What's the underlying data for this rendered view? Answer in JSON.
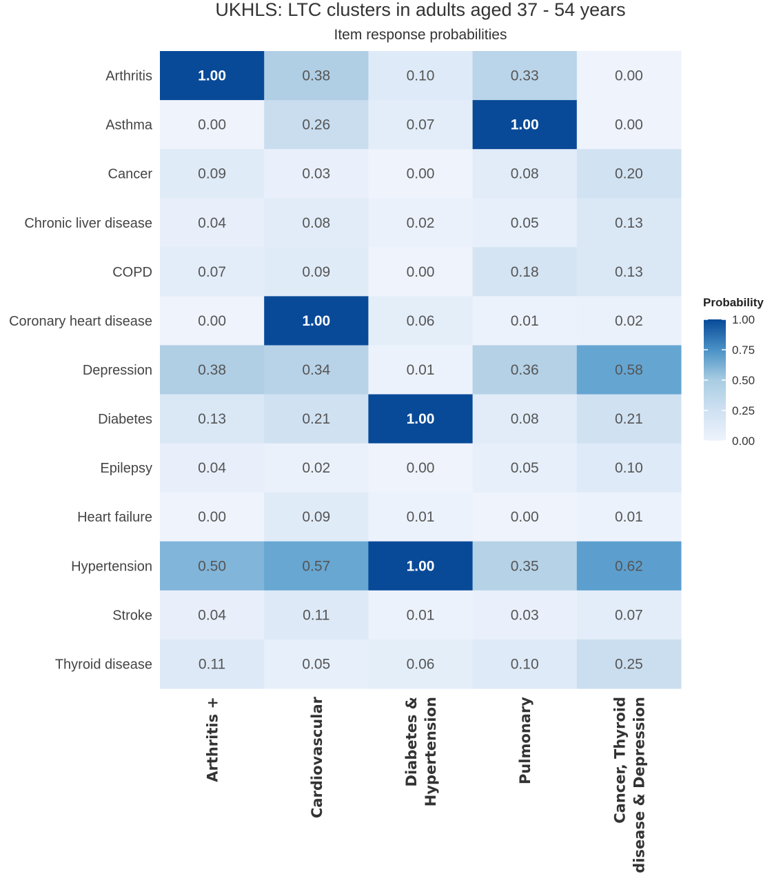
{
  "chart_data": {
    "type": "heatmap",
    "title": "UKHLS: LTC clusters in adults aged 37 - 54 years",
    "subtitle": "Item response probabilities",
    "rows": [
      "Arthritis",
      "Asthma",
      "Cancer",
      "Chronic liver disease",
      "COPD",
      "Coronary heart disease",
      "Depression",
      "Diabetes",
      "Epilepsy",
      "Heart failure",
      "Hypertension",
      "Stroke",
      "Thyroid disease"
    ],
    "columns": [
      [
        "Arthritis +"
      ],
      [
        "Cardiovascular"
      ],
      [
        "Diabetes &",
        "Hypertension"
      ],
      [
        "Pulmonary"
      ],
      [
        "Cancer, Thyroid",
        "disease & Depression"
      ]
    ],
    "values": [
      [
        1.0,
        0.38,
        0.1,
        0.33,
        0.0
      ],
      [
        0.0,
        0.26,
        0.07,
        1.0,
        0.0
      ],
      [
        0.09,
        0.03,
        0.0,
        0.08,
        0.2
      ],
      [
        0.04,
        0.08,
        0.02,
        0.05,
        0.13
      ],
      [
        0.07,
        0.09,
        0.0,
        0.18,
        0.13
      ],
      [
        0.0,
        1.0,
        0.06,
        0.01,
        0.02
      ],
      [
        0.38,
        0.34,
        0.01,
        0.36,
        0.58
      ],
      [
        0.13,
        0.21,
        1.0,
        0.08,
        0.21
      ],
      [
        0.04,
        0.02,
        0.0,
        0.05,
        0.1
      ],
      [
        0.0,
        0.09,
        0.01,
        0.0,
        0.01
      ],
      [
        0.5,
        0.57,
        1.0,
        0.35,
        0.62
      ],
      [
        0.04,
        0.11,
        0.01,
        0.03,
        0.07
      ],
      [
        0.11,
        0.05,
        0.06,
        0.1,
        0.25
      ]
    ],
    "value_range": [
      0,
      1
    ],
    "legend": {
      "title": "Probability",
      "placement": "right",
      "ticks": [
        1.0,
        0.75,
        0.5,
        0.25,
        0.0
      ]
    },
    "colors": {
      "low": "#eef3fc",
      "mid": "#a9cde2",
      "high": "#084a98",
      "label_dark": "#555555",
      "label_light": "#ffffff"
    }
  }
}
